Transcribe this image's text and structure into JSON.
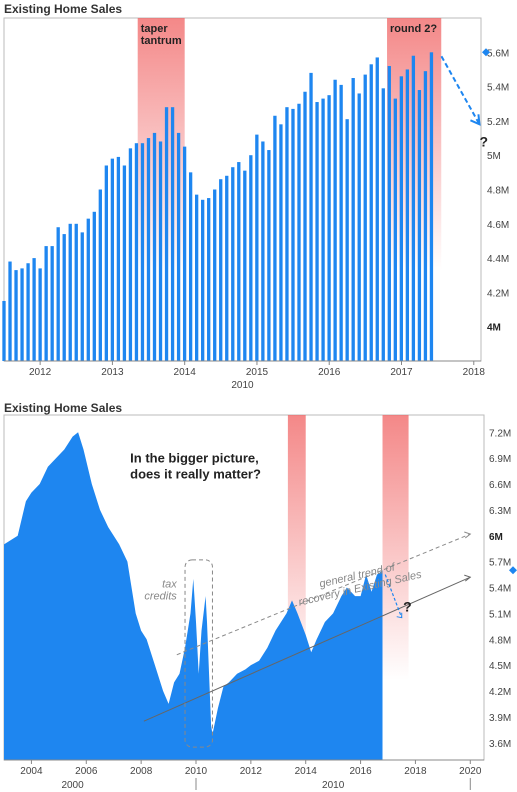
{
  "chart_data": [
    {
      "type": "bar",
      "title": "Existing Home Sales",
      "x_ticks": [
        "2012",
        "2013",
        "2014",
        "2015",
        "2016",
        "2017",
        "2018"
      ],
      "era_label": "2010",
      "y_ticks": [
        "4.2M",
        "4.4M",
        "4.6M",
        "4.8M",
        "5M",
        "5.2M",
        "5.4M",
        "5.6M"
      ],
      "y_ticks_bold": [
        "4M"
      ],
      "y_range": [
        3.8,
        5.8
      ],
      "highlight_value": "5.6M",
      "bar_color": "#1e86f0",
      "shade_color": "#f06060",
      "shaded_periods": [
        {
          "label": "taper\ntantrum",
          "start": 2013.35,
          "end": 2014.0
        },
        {
          "label": "round 2?",
          "start": 2016.8,
          "end": 2017.55
        }
      ],
      "question_mark": "?",
      "series": [
        {
          "x_start": 2011.5,
          "x_step": 0.0833,
          "values": [
            4.15,
            4.38,
            4.33,
            4.34,
            4.37,
            4.4,
            4.34,
            4.47,
            4.47,
            4.58,
            4.54,
            4.6,
            4.6,
            4.55,
            4.63,
            4.67,
            4.8,
            4.94,
            4.98,
            4.99,
            4.94,
            5.04,
            5.07,
            5.07,
            5.1,
            5.13,
            5.08,
            5.28,
            5.28,
            5.13,
            5.05,
            4.9,
            4.77,
            4.74,
            4.75,
            4.8,
            4.86,
            4.88,
            4.93,
            4.96,
            4.91,
            5.0,
            5.12,
            5.08,
            5.03,
            5.23,
            5.18,
            5.28,
            5.27,
            5.3,
            5.37,
            5.48,
            5.31,
            5.33,
            5.35,
            5.44,
            5.41,
            5.21,
            5.45,
            5.36,
            5.47,
            5.53,
            5.57,
            5.39,
            5.52,
            5.33,
            5.46,
            5.5,
            5.58,
            5.38,
            5.49,
            5.6
          ]
        }
      ]
    },
    {
      "type": "area",
      "title": "Existing Home Sales",
      "x_ticks": [
        "2004",
        "2006",
        "2008",
        "2010",
        "2012",
        "2014",
        "2016",
        "2018",
        "2020"
      ],
      "era_labels": [
        "2000",
        "2010"
      ],
      "y_ticks": [
        "3.6M",
        "3.9M",
        "4.2M",
        "4.5M",
        "4.8M",
        "5.1M",
        "5.4M",
        "5.7M",
        "6.3M",
        "6.6M",
        "6.9M",
        "7.2M"
      ],
      "y_ticks_bold": [
        "6M"
      ],
      "y_range": [
        3.4,
        7.4
      ],
      "fill_color": "#1e86f0",
      "shade_color": "#f06060",
      "shaded_periods": [
        {
          "start": 2013.35,
          "end": 2014.0
        },
        {
          "start": 2016.8,
          "end": 2017.75
        }
      ],
      "annotations": {
        "question": "In the bigger picture,\ndoes it really matter?",
        "tax_credits": "tax\ncredits",
        "trend": "general trend of\nrecovery in Existing Sales",
        "question_mark": "?"
      },
      "series": [
        {
          "points": [
            [
              2003.0,
              5.9
            ],
            [
              2003.5,
              6.0
            ],
            [
              2003.8,
              6.4
            ],
            [
              2004.0,
              6.5
            ],
            [
              2004.3,
              6.6
            ],
            [
              2004.6,
              6.8
            ],
            [
              2004.9,
              6.9
            ],
            [
              2005.2,
              7.0
            ],
            [
              2005.5,
              7.15
            ],
            [
              2005.7,
              7.2
            ],
            [
              2005.9,
              7.0
            ],
            [
              2006.2,
              6.6
            ],
            [
              2006.5,
              6.3
            ],
            [
              2006.8,
              6.1
            ],
            [
              2007.0,
              6.0
            ],
            [
              2007.2,
              5.9
            ],
            [
              2007.5,
              5.7
            ],
            [
              2007.8,
              5.1
            ],
            [
              2008.0,
              4.9
            ],
            [
              2008.2,
              4.8
            ],
            [
              2008.5,
              4.5
            ],
            [
              2008.8,
              4.2
            ],
            [
              2009.0,
              4.05
            ],
            [
              2009.2,
              4.3
            ],
            [
              2009.4,
              4.4
            ],
            [
              2009.6,
              4.7
            ],
            [
              2009.8,
              5.1
            ],
            [
              2009.9,
              5.5
            ],
            [
              2010.0,
              5.0
            ],
            [
              2010.1,
              4.4
            ],
            [
              2010.2,
              4.9
            ],
            [
              2010.35,
              5.3
            ],
            [
              2010.4,
              5.0
            ],
            [
              2010.55,
              3.8
            ],
            [
              2010.6,
              3.7
            ],
            [
              2010.8,
              4.0
            ],
            [
              2011.0,
              4.25
            ],
            [
              2011.2,
              4.3
            ],
            [
              2011.5,
              4.4
            ],
            [
              2011.8,
              4.45
            ],
            [
              2012.0,
              4.5
            ],
            [
              2012.3,
              4.55
            ],
            [
              2012.6,
              4.7
            ],
            [
              2012.9,
              4.9
            ],
            [
              2013.1,
              5.0
            ],
            [
              2013.3,
              5.1
            ],
            [
              2013.5,
              5.25
            ],
            [
              2013.7,
              5.1
            ],
            [
              2014.0,
              4.85
            ],
            [
              2014.2,
              4.65
            ],
            [
              2014.4,
              4.8
            ],
            [
              2014.7,
              5.0
            ],
            [
              2015.0,
              5.1
            ],
            [
              2015.3,
              5.3
            ],
            [
              2015.5,
              5.4
            ],
            [
              2015.8,
              5.3
            ],
            [
              2016.0,
              5.3
            ],
            [
              2016.2,
              5.55
            ],
            [
              2016.4,
              5.35
            ],
            [
              2016.6,
              5.55
            ],
            [
              2016.8,
              5.6
            ]
          ]
        }
      ]
    }
  ]
}
